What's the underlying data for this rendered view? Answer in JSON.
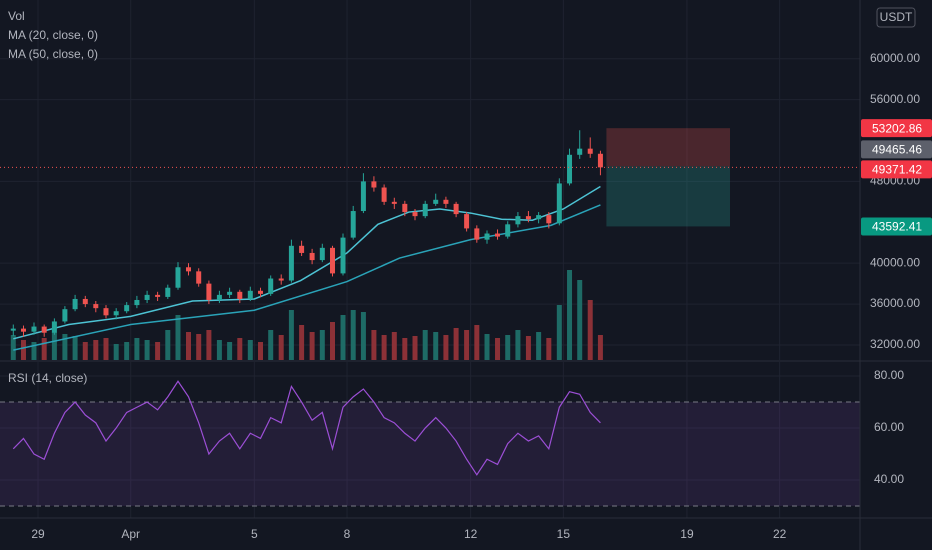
{
  "chart_data": {
    "type": "candlestick",
    "volume_title": "Vol",
    "unit": "USDT",
    "up_color": "#26a69a",
    "down_color": "#ef5350",
    "up_volume_color": "#1e6b66",
    "down_volume_color": "#8c3137",
    "xlim": [
      -1.23,
      26.6
    ],
    "xticks": [
      {
        "value": 0,
        "label": "29"
      },
      {
        "value": 3,
        "label": "Apr"
      },
      {
        "value": 7,
        "label": "5"
      },
      {
        "value": 10,
        "label": "8"
      },
      {
        "value": 14,
        "label": "12"
      },
      {
        "value": 17,
        "label": "15"
      },
      {
        "value": 21,
        "label": "19"
      },
      {
        "value": 24,
        "label": "22"
      }
    ],
    "ylim": [
      30530,
      65740
    ],
    "yticks": [
      {
        "value": 32000,
        "label": "32000.00"
      },
      {
        "value": 36000,
        "label": "36000.00"
      },
      {
        "value": 40000,
        "label": "40000.00"
      },
      {
        "value": 48000,
        "label": "48000.00"
      },
      {
        "value": 56000,
        "label": "56000.00"
      },
      {
        "value": 60000,
        "label": "60000.00"
      }
    ],
    "grid": true,
    "x": [
      -0.8,
      -0.47,
      -0.13,
      0.2,
      0.53,
      0.87,
      1.2,
      1.53,
      1.87,
      2.2,
      2.53,
      2.87,
      3.2,
      3.53,
      3.87,
      4.2,
      4.53,
      4.87,
      5.2,
      5.53,
      5.87,
      6.2,
      6.53,
      6.87,
      7.2,
      7.53,
      7.87,
      8.2,
      8.53,
      8.87,
      9.2,
      9.53,
      9.87,
      10.2,
      10.53,
      10.87,
      11.2,
      11.53,
      11.87,
      12.2,
      12.53,
      12.87,
      13.2,
      13.53,
      13.87,
      14.2,
      14.53,
      14.87,
      15.2,
      15.53,
      15.87,
      16.2,
      16.53,
      16.87,
      17.2,
      17.53,
      17.87,
      18.2
    ],
    "candles": [
      [
        33400,
        34000,
        32900,
        33600
      ],
      [
        33600,
        33900,
        32800,
        33300
      ],
      [
        33300,
        34200,
        33000,
        33800
      ],
      [
        33800,
        34000,
        32800,
        33200
      ],
      [
        33200,
        34600,
        33000,
        34300
      ],
      [
        34300,
        35800,
        34100,
        35500
      ],
      [
        35500,
        36900,
        35300,
        36500
      ],
      [
        36500,
        36800,
        35700,
        36000
      ],
      [
        36000,
        36300,
        35200,
        35600
      ],
      [
        35600,
        35900,
        34600,
        34900
      ],
      [
        34900,
        35600,
        34500,
        35300
      ],
      [
        35300,
        36200,
        35100,
        35900
      ],
      [
        35900,
        36800,
        35600,
        36400
      ],
      [
        36400,
        37300,
        36100,
        36900
      ],
      [
        36900,
        37200,
        36300,
        36700
      ],
      [
        36700,
        37900,
        36500,
        37600
      ],
      [
        37600,
        40100,
        37400,
        39600
      ],
      [
        39600,
        40000,
        38800,
        39200
      ],
      [
        39200,
        39500,
        37700,
        38000
      ],
      [
        38000,
        38300,
        36000,
        36400
      ],
      [
        36400,
        37300,
        36100,
        36900
      ],
      [
        36900,
        37600,
        36600,
        37200
      ],
      [
        37200,
        37400,
        36100,
        36500
      ],
      [
        36500,
        37700,
        36300,
        37300
      ],
      [
        37300,
        37600,
        36700,
        37000
      ],
      [
        37000,
        38800,
        36800,
        38500
      ],
      [
        38500,
        38900,
        37900,
        38300
      ],
      [
        38300,
        42300,
        38100,
        41700
      ],
      [
        41700,
        42200,
        40700,
        41000
      ],
      [
        41000,
        41400,
        39900,
        40300
      ],
      [
        40300,
        41900,
        40100,
        41500
      ],
      [
        41500,
        41700,
        38700,
        39000
      ],
      [
        39000,
        42900,
        38800,
        42500
      ],
      [
        42500,
        45600,
        42300,
        45100
      ],
      [
        45100,
        48800,
        44900,
        48000
      ],
      [
        48000,
        48500,
        47000,
        47400
      ],
      [
        47400,
        47700,
        45700,
        46000
      ],
      [
        46000,
        46400,
        45300,
        45800
      ],
      [
        45800,
        46100,
        44600,
        45000
      ],
      [
        45000,
        45300,
        44200,
        44600
      ],
      [
        44600,
        46100,
        44400,
        45800
      ],
      [
        45800,
        46800,
        45600,
        46200
      ],
      [
        46200,
        46500,
        45400,
        45800
      ],
      [
        45800,
        46000,
        44500,
        44800
      ],
      [
        44800,
        45000,
        43100,
        43400
      ],
      [
        43400,
        43700,
        42000,
        42300
      ],
      [
        42300,
        43200,
        41900,
        42900
      ],
      [
        42900,
        43300,
        42300,
        42600
      ],
      [
        42600,
        44100,
        42400,
        43800
      ],
      [
        43800,
        45000,
        43500,
        44600
      ],
      [
        44600,
        45100,
        44000,
        44300
      ],
      [
        44300,
        45000,
        43900,
        44700
      ],
      [
        44700,
        45000,
        43400,
        43900
      ],
      [
        43900,
        48300,
        43700,
        47800
      ],
      [
        47800,
        51200,
        47600,
        50600
      ],
      [
        50600,
        53000,
        50200,
        51200
      ],
      [
        51200,
        52300,
        50300,
        50700
      ],
      [
        50700,
        51000,
        48600,
        49371.42
      ]
    ],
    "volume": [
      25,
      20,
      18,
      22,
      28,
      26,
      24,
      18,
      20,
      22,
      16,
      18,
      22,
      20,
      18,
      30,
      45,
      28,
      26,
      30,
      20,
      18,
      22,
      20,
      18,
      30,
      25,
      50,
      35,
      28,
      30,
      38,
      45,
      50,
      48,
      30,
      25,
      28,
      22,
      24,
      30,
      28,
      25,
      32,
      30,
      35,
      26,
      22,
      25,
      30,
      24,
      28,
      22,
      55,
      90,
      80,
      60,
      25
    ],
    "ma": [
      {
        "name": "MA (20, close, 0)",
        "color": "#4dc3d4",
        "x": [
          -0.8,
          1,
          3,
          5,
          7,
          8.5,
          10,
          11,
          12,
          13,
          14,
          15,
          16,
          17,
          18.2
        ],
        "values": [
          32600,
          34000,
          34800,
          36300,
          36500,
          38300,
          41000,
          43800,
          45000,
          45300,
          44900,
          44300,
          44200,
          45300,
          47500
        ]
      },
      {
        "name": "MA (50, close, 0)",
        "color": "#2aa3b8",
        "x": [
          -0.8,
          3,
          7,
          10,
          11.7,
          14,
          16.6,
          18.2
        ],
        "values": [
          31500,
          34000,
          35400,
          38200,
          40500,
          42300,
          43700,
          45700
        ]
      }
    ],
    "position": {
      "stop": 53202.86,
      "entry": 49465.46,
      "target": 43592.41
    },
    "last_price": 49371.42,
    "rsi": {
      "title": "RSI (14, close)",
      "color": "#9c4fd6",
      "ylim": [
        25.4,
        85.4
      ],
      "yticks": [
        {
          "value": 80,
          "label": "80.00"
        },
        {
          "value": 60,
          "label": "60.00"
        },
        {
          "value": 40,
          "label": "40.00"
        }
      ],
      "bands": [
        30,
        70
      ],
      "values": [
        52,
        56,
        50,
        48,
        58,
        66,
        70,
        65,
        62,
        55,
        60,
        66,
        68,
        70,
        67,
        72,
        78,
        72,
        62,
        50,
        55,
        58,
        52,
        58,
        56,
        64,
        62,
        76,
        70,
        63,
        66,
        52,
        68,
        72,
        75,
        70,
        64,
        62,
        58,
        55,
        60,
        64,
        60,
        55,
        48,
        42,
        48,
        46,
        54,
        58,
        55,
        57,
        52,
        68,
        74,
        73,
        66,
        62
      ]
    }
  }
}
